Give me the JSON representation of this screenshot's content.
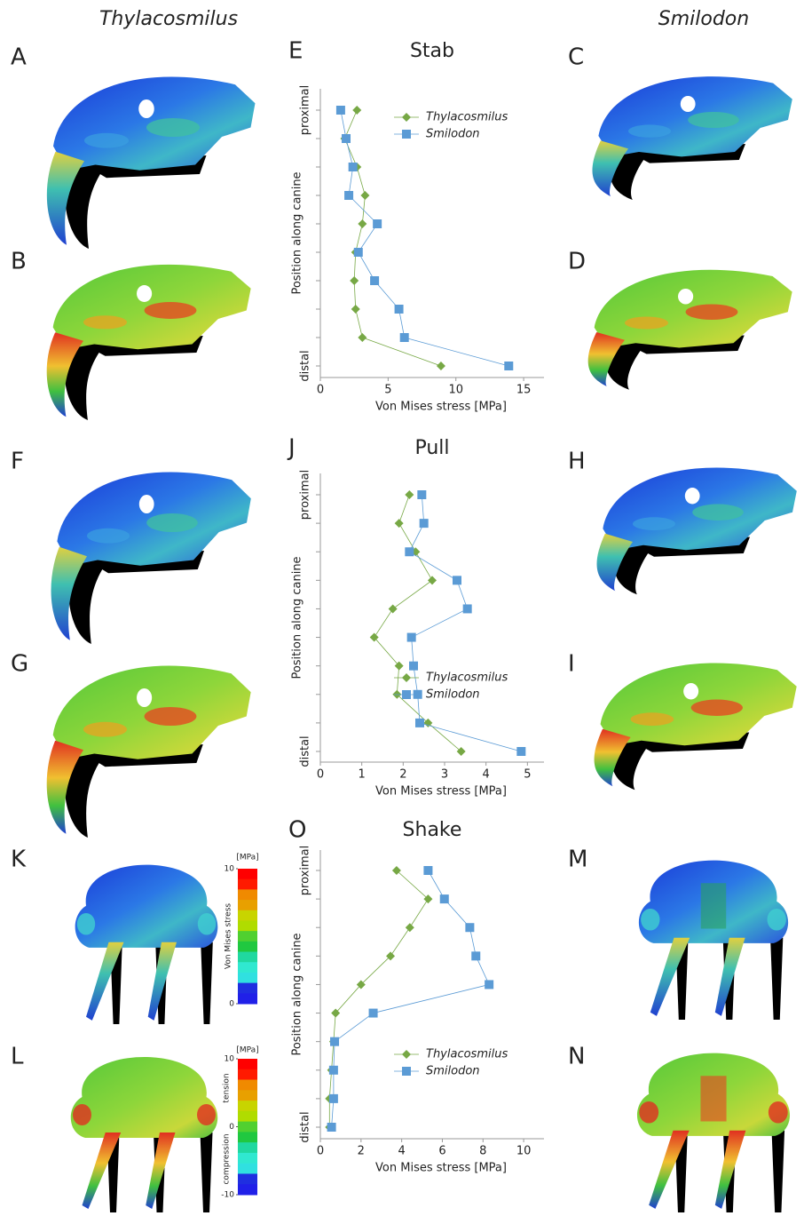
{
  "figure": {
    "column_titles": [
      "Thylacosmilus",
      "Smilodon"
    ],
    "image_panels": [
      "A",
      "B",
      "C",
      "D",
      "F",
      "G",
      "H",
      "I",
      "K",
      "L",
      "M",
      "N"
    ],
    "colorbars": [
      {
        "unit": "[MPa]",
        "title": "Von Mises  stress",
        "lim": [
          0,
          10
        ],
        "ticks": [
          0,
          10
        ]
      },
      {
        "unit": "[MPa]",
        "lim": [
          -10,
          10
        ],
        "ticks": [
          -10,
          0,
          10
        ],
        "annotations": [
          "tension",
          "compression"
        ]
      }
    ]
  },
  "chart_data": [
    {
      "type": "scatter-line",
      "panel": "E",
      "title": "Stab",
      "xlabel": "Von Mises stress [MPa]",
      "ylabel": "Position along canine",
      "categories": [
        "proximal",
        null,
        null,
        null,
        null,
        null,
        null,
        null,
        null,
        "distal"
      ],
      "xlim": [
        0,
        16.5
      ],
      "xticks": [
        0,
        5,
        10,
        15
      ],
      "legend": "upper right",
      "series": [
        {
          "name": "Thylacosmilus",
          "color": "#77a845",
          "marker": "diamond",
          "values": [
            2.7,
            1.8,
            2.7,
            3.3,
            3.1,
            2.6,
            2.5,
            2.6,
            3.1,
            8.9
          ]
        },
        {
          "name": "Smilodon",
          "color": "#5b9bd5",
          "marker": "square",
          "values": [
            1.5,
            1.9,
            2.4,
            2.1,
            4.2,
            2.8,
            4.0,
            5.8,
            6.2,
            13.9
          ]
        }
      ]
    },
    {
      "type": "scatter-line",
      "panel": "J",
      "title": "Pull",
      "xlabel": "Von Mises stress [MPa]",
      "ylabel": "Position along canine",
      "categories": [
        "proximal",
        null,
        null,
        null,
        null,
        null,
        null,
        null,
        null,
        "distal"
      ],
      "xlim": [
        0,
        5.4
      ],
      "xticks": [
        0,
        1,
        2,
        3,
        4,
        5
      ],
      "legend": "lower right",
      "series": [
        {
          "name": "Thylacosmilus",
          "color": "#77a845",
          "marker": "diamond",
          "values": [
            2.15,
            1.9,
            2.3,
            2.7,
            1.75,
            1.3,
            1.9,
            1.85,
            2.6,
            3.4
          ]
        },
        {
          "name": "Smilodon",
          "color": "#5b9bd5",
          "marker": "square",
          "values": [
            2.45,
            2.5,
            2.15,
            3.3,
            3.55,
            2.2,
            2.25,
            2.35,
            2.4,
            4.85
          ]
        }
      ]
    },
    {
      "type": "scatter-line",
      "panel": "O",
      "title": "Shake",
      "xlabel": "Von Mises stress [MPa]",
      "ylabel": "Position along canine",
      "categories": [
        "proximal",
        null,
        null,
        null,
        null,
        null,
        null,
        null,
        null,
        "distal"
      ],
      "xlim": [
        0,
        11
      ],
      "xticks": [
        0,
        2,
        4,
        6,
        8,
        10
      ],
      "legend": "lower right",
      "series": [
        {
          "name": "Thylacosmilus",
          "color": "#77a845",
          "marker": "diamond",
          "values": [
            3.75,
            5.3,
            4.4,
            3.45,
            2.0,
            0.75,
            0.65,
            0.55,
            0.45,
            0.45
          ]
        },
        {
          "name": "Smilodon",
          "color": "#5b9bd5",
          "marker": "square",
          "values": [
            5.3,
            6.1,
            7.35,
            7.65,
            8.3,
            2.6,
            0.7,
            0.65,
            0.65,
            0.55
          ]
        }
      ]
    }
  ]
}
